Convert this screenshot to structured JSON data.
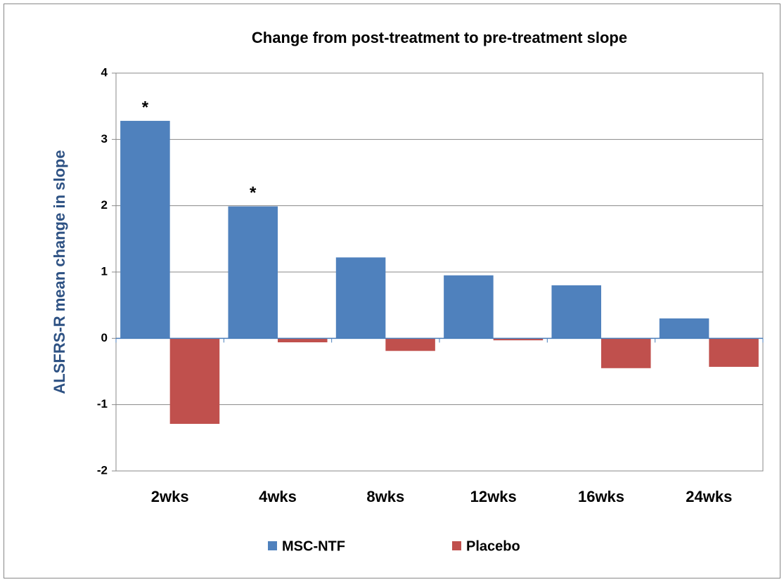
{
  "chart_data": {
    "type": "bar",
    "title": "Change from post-treatment to pre-treatment slope",
    "y_label": "ALSFRS-R mean change in slope",
    "categories": [
      "2wks",
      "4wks",
      "8wks",
      "12wks",
      "16wks",
      "24wks"
    ],
    "series": [
      {
        "name": "MSC-NTF",
        "color": "#4f81bd",
        "values": [
          3.28,
          1.99,
          1.22,
          0.95,
          0.8,
          0.3
        ]
      },
      {
        "name": "Placebo",
        "color": "#c0504d",
        "values": [
          -1.29,
          -0.06,
          -0.19,
          -0.03,
          -0.45,
          -0.43
        ]
      }
    ],
    "annotations": [
      {
        "text": "*",
        "x": "2wks"
      },
      {
        "text": "*",
        "x": "4wks"
      }
    ],
    "ylim": [
      -2,
      4
    ],
    "yticks": [
      -2,
      -1,
      0,
      1,
      2,
      3,
      4
    ],
    "grid": true,
    "legend": "bottom"
  }
}
